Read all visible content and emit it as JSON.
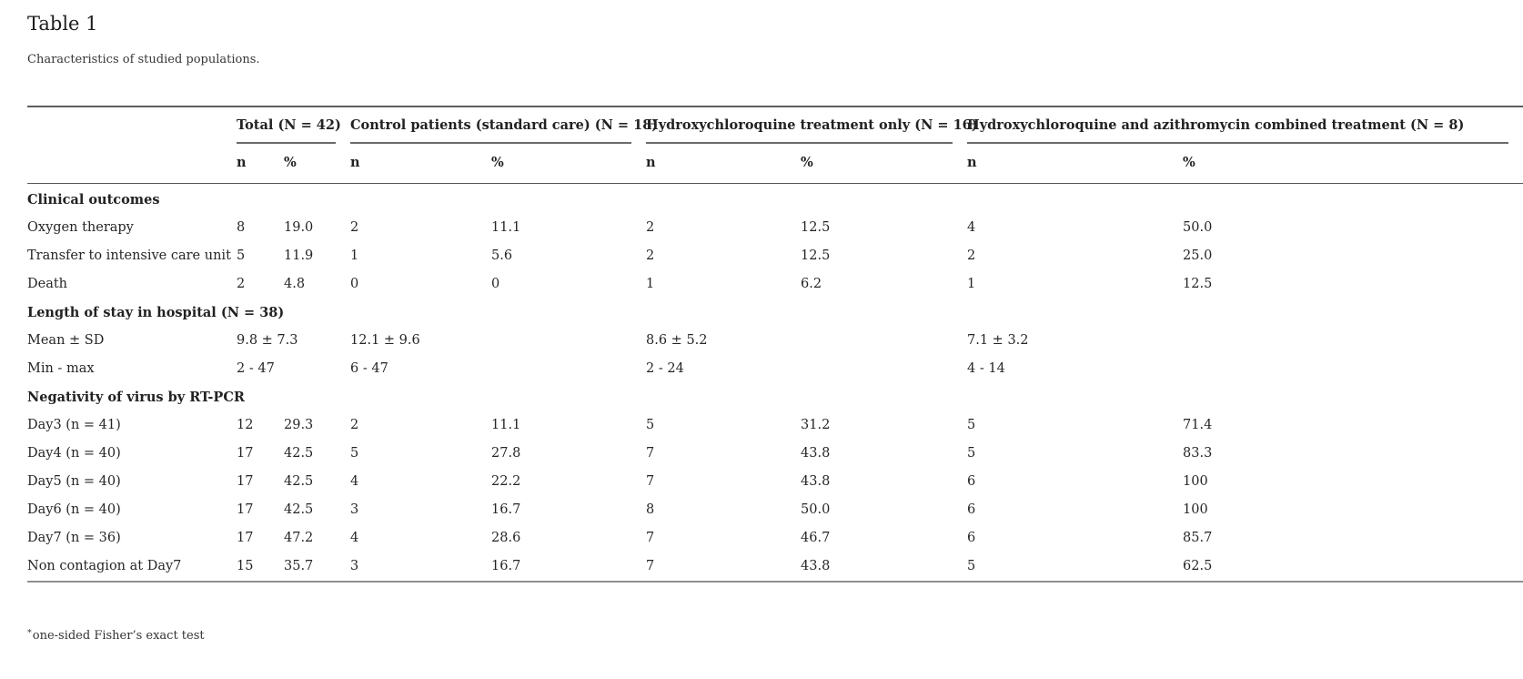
{
  "page": {
    "title": "Table 1",
    "subtitle": "Characteristics of studied populations.",
    "footnote": {
      "marker": "*",
      "text": "one-sided Fisher’s exact test"
    }
  },
  "colors": {
    "text": "#262626",
    "rule_top": "#5d5d5d",
    "rule_group_underline": "#6a6a6a",
    "rule_header_bottom": "#575757",
    "rule_table_bottom": "#8f8f8f"
  },
  "table": {
    "groups": [
      "Total (N = 42)",
      "Control patients (standard care) (N = 18)",
      "Hydroxychloroquine treatment only (N = 16)",
      "Hydroxychloroquine and azithromycin combined treatment (N = 8)"
    ],
    "subheaders": [
      "n",
      "%",
      "n",
      "%",
      "n",
      "%",
      "n",
      "%"
    ],
    "rows": [
      {
        "type": "section",
        "label": "Clinical outcomes"
      },
      {
        "type": "data",
        "label": "Oxygen therapy",
        "cells": [
          "8",
          "19.0",
          "2",
          "11.1",
          "2",
          "12.5",
          "4",
          "50.0"
        ]
      },
      {
        "type": "data",
        "label": "Transfer to intensive care unit",
        "cells": [
          "5",
          "11.9",
          "1",
          "5.6",
          "2",
          "12.5",
          "2",
          "25.0"
        ]
      },
      {
        "type": "data",
        "label": "Death",
        "cells": [
          "2",
          "4.8",
          "0",
          "0",
          "1",
          "6.2",
          "1",
          "12.5"
        ]
      },
      {
        "type": "section",
        "label": "Length of stay in hospital (N = 38)"
      },
      {
        "type": "span",
        "label": "Mean ± SD",
        "cells": [
          "9.8 ± 7.3",
          "12.1 ± 9.6",
          "8.6 ± 5.2",
          "7.1 ± 3.2"
        ]
      },
      {
        "type": "span",
        "label": "Min - max",
        "cells": [
          "2 - 47",
          "6 - 47",
          "2 - 24",
          "4 - 14"
        ]
      },
      {
        "type": "section",
        "label": "Negativity of virus by RT-PCR"
      },
      {
        "type": "data",
        "label": "Day3 (n = 41)",
        "cells": [
          "12",
          "29.3",
          "2",
          "11.1",
          "5",
          "31.2",
          "5",
          "71.4"
        ]
      },
      {
        "type": "data",
        "label": "Day4 (n = 40)",
        "cells": [
          "17",
          "42.5",
          "5",
          "27.8",
          "7",
          "43.8",
          "5",
          "83.3"
        ]
      },
      {
        "type": "data",
        "label": "Day5 (n = 40)",
        "cells": [
          "17",
          "42.5",
          "4",
          "22.2",
          "7",
          "43.8",
          "6",
          "100"
        ]
      },
      {
        "type": "data",
        "label": "Day6 (n = 40)",
        "cells": [
          "17",
          "42.5",
          "3",
          "16.7",
          "8",
          "50.0",
          "6",
          "100"
        ]
      },
      {
        "type": "data",
        "label": "Day7 (n = 36)",
        "cells": [
          "17",
          "47.2",
          "4",
          "28.6",
          "7",
          "46.7",
          "6",
          "85.7"
        ]
      },
      {
        "type": "data",
        "label": "Non contagion at Day7",
        "cells": [
          "15",
          "35.7",
          "3",
          "16.7",
          "7",
          "43.8",
          "5",
          "62.5"
        ]
      }
    ]
  }
}
